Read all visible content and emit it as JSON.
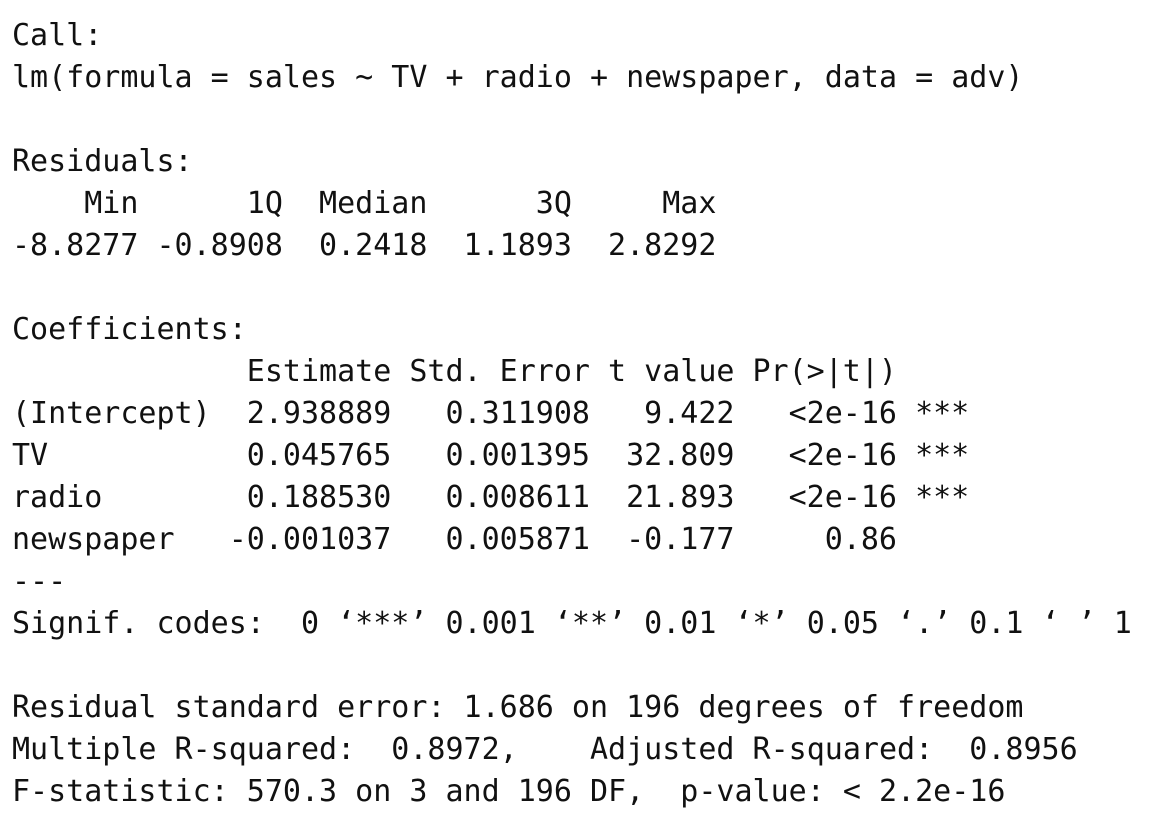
{
  "call": {
    "label": "Call:",
    "formula": "lm(formula = sales ~ TV + radio + newspaper, data = adv)"
  },
  "residuals": {
    "label": "Residuals:",
    "headers": [
      "Min",
      "1Q",
      "Median",
      "3Q",
      "Max"
    ],
    "values": [
      "-8.8277",
      "-0.8908",
      "0.2418",
      "1.1893",
      "2.8292"
    ]
  },
  "coefficients": {
    "label": "Coefficients:",
    "headers": [
      "Estimate",
      "Std. Error",
      "t value",
      "Pr(>|t|)"
    ],
    "rows": [
      {
        "name": "(Intercept)",
        "cells": [
          "2.938889",
          "0.311908",
          "9.422",
          "<2e-16"
        ],
        "signif": "***"
      },
      {
        "name": "TV",
        "cells": [
          "0.045765",
          "0.001395",
          "32.809",
          "<2e-16"
        ],
        "signif": "***"
      },
      {
        "name": "radio",
        "cells": [
          "0.188530",
          "0.008611",
          "21.893",
          "<2e-16"
        ],
        "signif": "***"
      },
      {
        "name": "newspaper",
        "cells": [
          "-0.001037",
          "0.005871",
          "-0.177",
          "0.86"
        ]
      }
    ]
  },
  "separator": "---",
  "signif_codes": "Signif. codes:  0 ‘***’ 0.001 ‘**’ 0.01 ‘*’ 0.05 ‘.’ 0.1 ‘ ’ 1",
  "summary": {
    "residual_standard_error": "Residual standard error: 1.686 on 196 degrees of freedom",
    "r_squared": "Multiple R-squared:  0.8972,",
    "adjusted_r_squared": "Adjusted R-squared:  0.8956",
    "f_statistic": "F-statistic: 570.3 on 3 and 196 DF,  p-value: < 2.2e-16"
  }
}
